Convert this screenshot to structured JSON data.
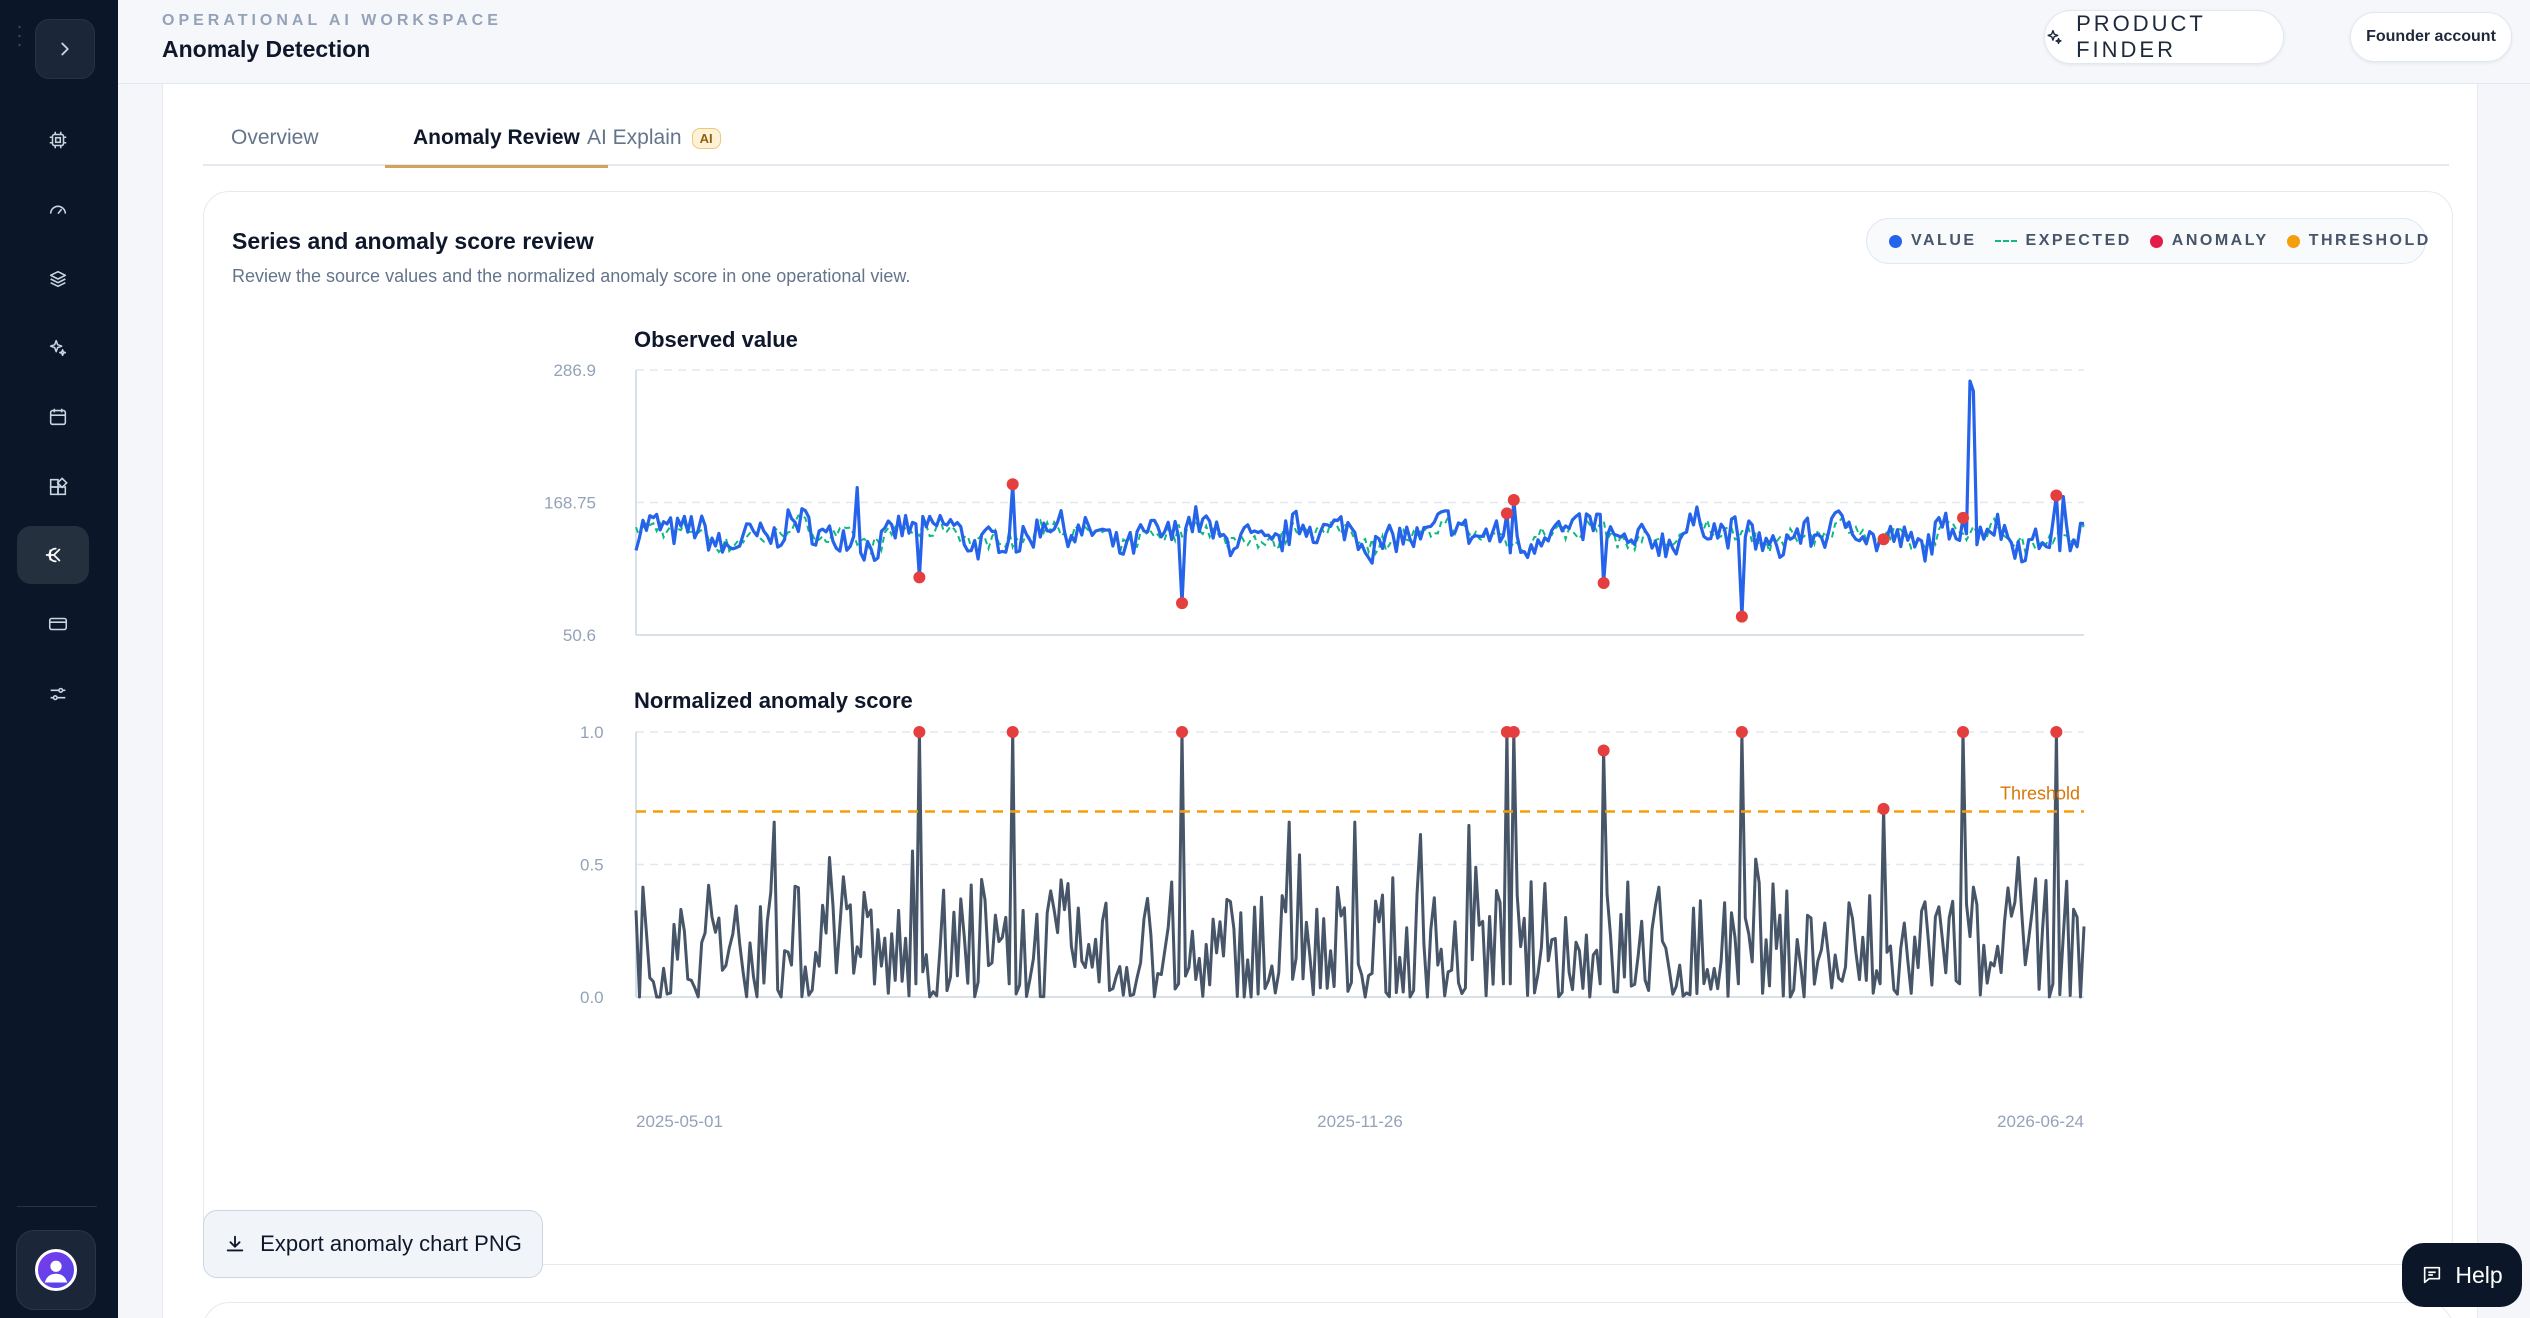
{
  "header": {
    "eyebrow": "OPERATIONAL AI WORKSPACE",
    "title": "Anomaly Detection",
    "product_finder": "PRODUCT FINDER",
    "account": "Founder account"
  },
  "sidebar": {
    "items": [
      {
        "icon": "chip-icon"
      },
      {
        "icon": "gauge-icon"
      },
      {
        "icon": "layers-icon"
      },
      {
        "icon": "sparkle-icon"
      },
      {
        "icon": "calendar-icon"
      },
      {
        "icon": "widgets-icon"
      },
      {
        "icon": "anomaly-icon",
        "active": true
      },
      {
        "icon": "card-icon"
      },
      {
        "icon": "sliders-icon"
      }
    ]
  },
  "tabs": [
    {
      "label": "Overview"
    },
    {
      "label": "Anomaly Review",
      "active": true
    },
    {
      "label": "AI Explain",
      "badge": "AI"
    }
  ],
  "card": {
    "title": "Series and anomaly score review",
    "subtitle": "Review the source values and the normalized anomaly score in one operational view."
  },
  "legend": [
    {
      "label": "VALUE",
      "color": "#2563eb"
    },
    {
      "label": "EXPECTED",
      "color": "#10b981"
    },
    {
      "label": "ANOMALY",
      "color": "#e11d48"
    },
    {
      "label": "THRESHOLD",
      "color": "#f59e0b"
    }
  ],
  "export_label": "Export anomaly chart PNG",
  "help_label": "Help",
  "chart_data": [
    {
      "type": "line",
      "title": "Observed value",
      "y_ticks": [
        "286.9",
        "168.75",
        "50.6"
      ],
      "ylim": [
        50.6,
        286.9
      ],
      "x_ticks": [
        "2025-05-01",
        "2025-11-26",
        "2026-06-24"
      ],
      "n_points": 420,
      "series": [
        {
          "name": "Value",
          "color": "#2563eb",
          "baseline": 140,
          "noise": 14
        },
        {
          "name": "Expected",
          "color": "#10b981",
          "baseline": 140,
          "noise": 8
        }
      ],
      "spikes": [
        {
          "index": 64,
          "value": 182
        },
        {
          "index": 252,
          "value": 170
        },
        {
          "index": 386,
          "value": 277
        },
        {
          "index": 387,
          "value": 268
        },
        {
          "index": 413,
          "value": 174
        }
      ],
      "anomalies": [
        {
          "index": 82,
          "value": 102
        },
        {
          "index": 109,
          "value": 185
        },
        {
          "index": 158,
          "value": 79
        },
        {
          "index": 252,
          "value": 159
        },
        {
          "index": 254,
          "value": 171
        },
        {
          "index": 280,
          "value": 97
        },
        {
          "index": 320,
          "value": 67
        },
        {
          "index": 361,
          "value": 136
        },
        {
          "index": 384,
          "value": 155
        },
        {
          "index": 411,
          "value": 175
        }
      ]
    },
    {
      "type": "line",
      "title": "Normalized anomaly score",
      "y_ticks": [
        "1.0",
        "0.5",
        "0.0"
      ],
      "ylim": [
        0.0,
        1.0
      ],
      "x_ticks": [
        "2025-05-01",
        "2025-11-26",
        "2026-06-24"
      ],
      "threshold": 0.7,
      "threshold_label": "Threshold",
      "series": [
        {
          "name": "Score",
          "color": "#475569"
        }
      ],
      "anomalies": [
        {
          "index": 82,
          "value": 1.0
        },
        {
          "index": 109,
          "value": 1.0
        },
        {
          "index": 158,
          "value": 1.0
        },
        {
          "index": 252,
          "value": 1.0
        },
        {
          "index": 254,
          "value": 1.0
        },
        {
          "index": 280,
          "value": 0.93
        },
        {
          "index": 320,
          "value": 1.0
        },
        {
          "index": 361,
          "value": 0.71
        },
        {
          "index": 384,
          "value": 1.0
        },
        {
          "index": 411,
          "value": 1.0
        }
      ]
    }
  ]
}
